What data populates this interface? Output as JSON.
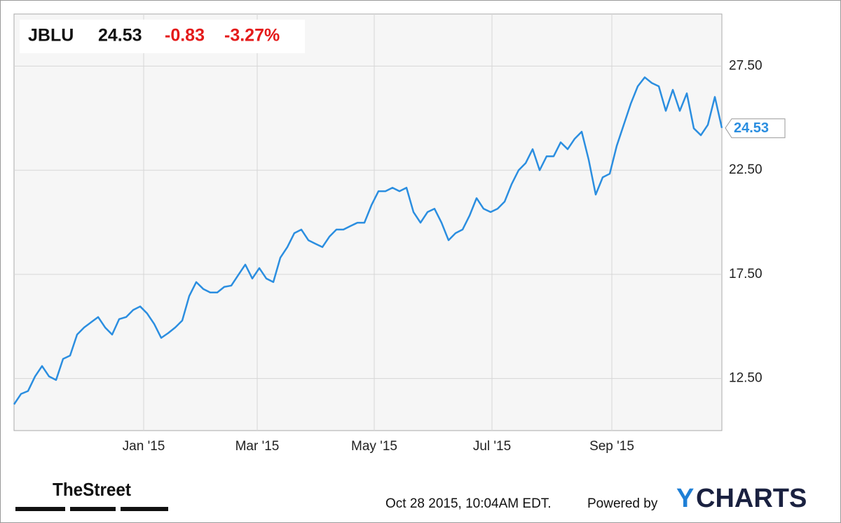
{
  "header": {
    "symbol": "JBLU",
    "price": "24.53",
    "change": "-0.83",
    "change_percent": "-3.27%"
  },
  "chart_data": {
    "type": "line",
    "series": [
      {
        "name": "JBLU",
        "color": "#2b8ee0",
        "values": [
          11.26,
          11.76,
          11.9,
          12.6,
          13.1,
          12.6,
          12.43,
          13.44,
          13.6,
          14.61,
          14.95,
          15.2,
          15.45,
          14.95,
          14.61,
          15.35,
          15.45,
          15.79,
          15.96,
          15.62,
          15.12,
          14.45,
          14.68,
          14.95,
          15.28,
          16.46,
          17.13,
          16.8,
          16.63,
          16.63,
          16.9,
          16.96,
          17.47,
          17.97,
          17.3,
          17.8,
          17.3,
          17.13,
          18.3,
          18.81,
          19.48,
          19.65,
          19.14,
          18.97,
          18.81,
          19.31,
          19.65,
          19.65,
          19.82,
          19.98,
          19.98,
          20.82,
          21.49,
          21.49,
          21.66,
          21.49,
          21.66,
          20.49,
          19.98,
          20.49,
          20.65,
          19.98,
          19.14,
          19.48,
          19.65,
          20.32,
          21.16,
          20.65,
          20.49,
          20.65,
          20.99,
          21.83,
          22.5,
          22.84,
          23.51,
          22.5,
          23.17,
          23.17,
          23.84,
          23.51,
          24.01,
          24.35,
          23.0,
          21.33,
          22.16,
          22.33,
          23.67,
          24.68,
          25.69,
          26.53,
          26.96,
          26.69,
          26.53,
          25.35,
          26.36,
          25.35,
          26.19,
          24.51,
          24.18,
          24.68,
          26.02,
          24.53
        ]
      }
    ],
    "xlim": [
      0,
      101
    ],
    "xticks": [
      {
        "value": 18.5,
        "label": "Jan '15"
      },
      {
        "value": 34.7,
        "label": "Mar '15"
      },
      {
        "value": 51.4,
        "label": "May '15"
      },
      {
        "value": 68.2,
        "label": "Jul '15"
      },
      {
        "value": 85.3,
        "label": "Sep '15"
      }
    ],
    "ylim": [
      10,
      30
    ],
    "yticks": [
      {
        "value": 12.5,
        "label": "12.50"
      },
      {
        "value": 17.5,
        "label": "17.50"
      },
      {
        "value": 22.5,
        "label": "22.50"
      },
      {
        "value": 27.5,
        "label": "27.50"
      }
    ],
    "grid": true
  },
  "footer": {
    "source_logo": "TheStreet",
    "timestamp": "Oct 28 2015, 10:04AM EDT.",
    "powered_by": "Powered by",
    "brand_y": "Y",
    "brand_rest": "CHARTS"
  }
}
